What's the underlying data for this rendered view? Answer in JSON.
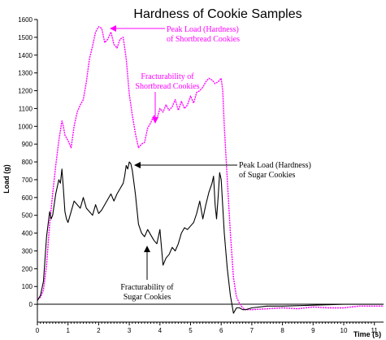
{
  "chart_data": {
    "type": "line",
    "title": "Hardness of Cookie Samples",
    "xlabel": "Time (s)",
    "ylabel": "Load (g)",
    "xlim": [
      0,
      11.3
    ],
    "ylim": [
      -100,
      1600
    ],
    "x_ticks": [
      "0",
      "1",
      "2",
      "3",
      "4",
      "5",
      "6",
      "7",
      "8",
      "9",
      "10",
      "11"
    ],
    "y_ticks": [
      "0",
      "100",
      "200",
      "300",
      "400",
      "500",
      "600",
      "700",
      "800",
      "900",
      "1000",
      "1100",
      "1200",
      "1300",
      "1400",
      "1500",
      "1600"
    ],
    "grid": false,
    "series": [
      {
        "color": "#ff00ff",
        "style": "dotted",
        "x": [
          0.0,
          0.1,
          0.2,
          0.3,
          0.4,
          0.5,
          0.6,
          0.7,
          0.8,
          0.85,
          0.9,
          1.0,
          1.1,
          1.2,
          1.3,
          1.4,
          1.5,
          1.6,
          1.7,
          1.8,
          1.9,
          2.0,
          2.1,
          2.2,
          2.3,
          2.4,
          2.5,
          2.6,
          2.7,
          2.8,
          2.9,
          3.0,
          3.1,
          3.2,
          3.3,
          3.4,
          3.5,
          3.6,
          3.7,
          3.8,
          3.9,
          4.0,
          4.1,
          4.2,
          4.3,
          4.4,
          4.5,
          4.6,
          4.7,
          4.8,
          4.9,
          5.0,
          5.1,
          5.2,
          5.3,
          5.4,
          5.5,
          5.6,
          5.7,
          5.8,
          5.9,
          6.0,
          6.05,
          6.1,
          6.2,
          6.3,
          6.4,
          6.5,
          6.6,
          6.7,
          6.8,
          7.0,
          7.5,
          8.0,
          8.5,
          9.0,
          9.5,
          10.0,
          10.5,
          11.0,
          11.3
        ],
        "y": [
          30,
          40,
          80,
          220,
          450,
          620,
          780,
          920,
          1030,
          1000,
          950,
          920,
          880,
          1000,
          1080,
          1120,
          1150,
          1250,
          1380,
          1450,
          1530,
          1560,
          1550,
          1470,
          1490,
          1530,
          1460,
          1440,
          1490,
          1500,
          1380,
          1180,
          1060,
          960,
          880,
          900,
          910,
          990,
          1020,
          1060,
          1040,
          1100,
          1080,
          1120,
          1090,
          1110,
          1150,
          1090,
          1140,
          1100,
          1120,
          1170,
          1130,
          1190,
          1200,
          1220,
          1250,
          1270,
          1260,
          1240,
          1250,
          1270,
          1200,
          1000,
          700,
          400,
          150,
          40,
          5,
          -20,
          -30,
          -30,
          -25,
          -20,
          -25,
          -15,
          -20,
          -20,
          -10,
          -10,
          -10
        ]
      },
      {
        "color": "#000000",
        "style": "solid",
        "x": [
          0.0,
          0.1,
          0.2,
          0.3,
          0.4,
          0.45,
          0.5,
          0.55,
          0.6,
          0.7,
          0.75,
          0.8,
          0.85,
          0.9,
          0.95,
          1.0,
          1.1,
          1.2,
          1.3,
          1.4,
          1.5,
          1.6,
          1.7,
          1.8,
          1.9,
          2.0,
          2.1,
          2.2,
          2.3,
          2.4,
          2.5,
          2.6,
          2.7,
          2.8,
          2.85,
          2.9,
          2.95,
          3.0,
          3.05,
          3.1,
          3.2,
          3.3,
          3.4,
          3.5,
          3.6,
          3.7,
          3.8,
          3.9,
          4.0,
          4.1,
          4.2,
          4.3,
          4.4,
          4.5,
          4.6,
          4.7,
          4.8,
          4.9,
          5.0,
          5.1,
          5.2,
          5.3,
          5.4,
          5.5,
          5.6,
          5.7,
          5.75,
          5.8,
          5.85,
          5.9,
          5.95,
          6.0,
          6.1,
          6.2,
          6.3,
          6.4,
          6.5,
          6.6,
          6.7,
          6.8,
          7.0,
          7.5,
          8.0,
          9.0,
          10.0,
          11.0,
          11.3
        ],
        "y": [
          20,
          50,
          130,
          380,
          520,
          480,
          500,
          560,
          620,
          700,
          680,
          760,
          650,
          520,
          480,
          460,
          520,
          580,
          560,
          540,
          600,
          540,
          520,
          500,
          560,
          510,
          530,
          560,
          590,
          620,
          580,
          620,
          650,
          680,
          720,
          780,
          760,
          800,
          790,
          750,
          620,
          450,
          400,
          380,
          420,
          390,
          360,
          340,
          420,
          220,
          260,
          280,
          320,
          300,
          340,
          400,
          430,
          420,
          440,
          460,
          510,
          580,
          480,
          560,
          630,
          680,
          720,
          560,
          480,
          600,
          740,
          700,
          400,
          200,
          50,
          -50,
          -20,
          -20,
          -30,
          -30,
          -20,
          -10,
          -10,
          -5,
          0,
          0,
          0
        ]
      }
    ],
    "annotations": [
      {
        "lines": [
          "Peak Load (Hardness)",
          "of Shortbread Cookies"
        ],
        "color": "#ff00ff"
      },
      {
        "lines": [
          "Fracturability of",
          "Shortbread Cookies"
        ],
        "color": "#ff00ff"
      },
      {
        "lines": [
          "Peak Load (Hardness)",
          "of Sugar Cookies"
        ],
        "color": "#000000"
      },
      {
        "lines": [
          "Fracturability of",
          "Sugar Cookies"
        ],
        "color": "#000000"
      }
    ]
  }
}
